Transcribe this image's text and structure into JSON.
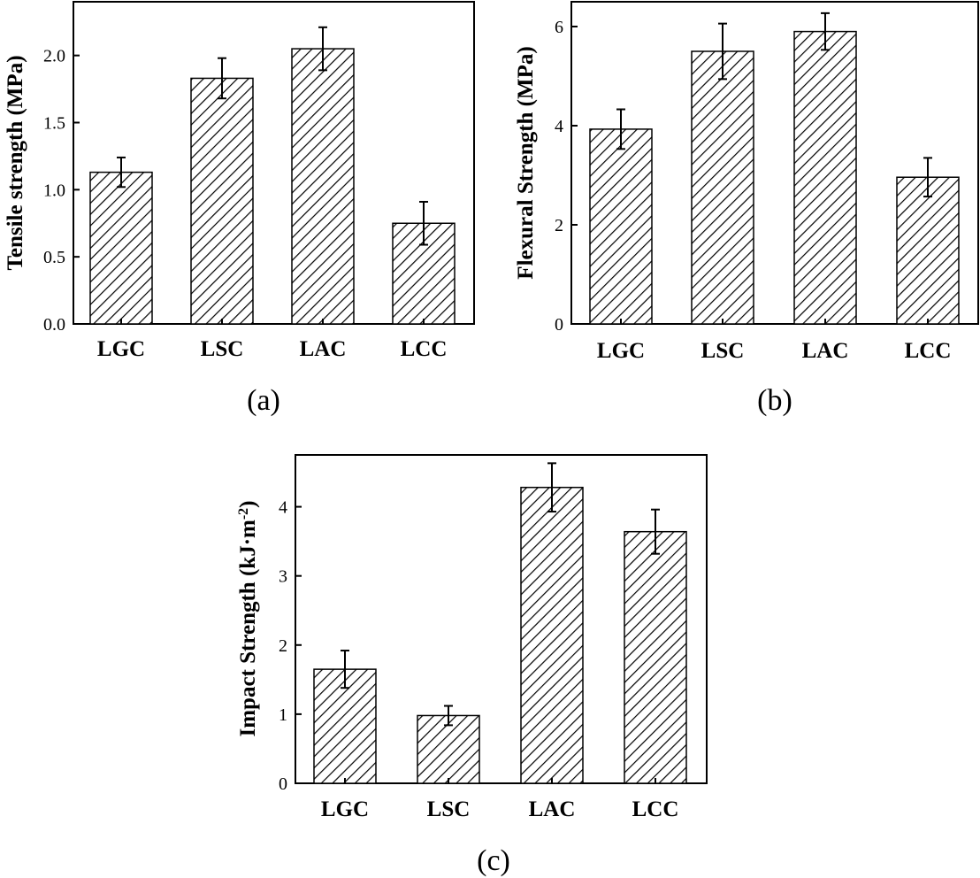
{
  "chart_data": [
    {
      "type": "bar",
      "panel": "(a)",
      "ylabel": "Tensile strength (MPa)",
      "xlabel": "",
      "categories": [
        "LGC",
        "LSC",
        "LAC",
        "LCC"
      ],
      "values": [
        1.13,
        1.83,
        2.05,
        0.75
      ],
      "errors": [
        0.11,
        0.15,
        0.16,
        0.16
      ],
      "ylim": [
        0,
        2.4
      ],
      "yticks": [
        "0.0",
        "0.5",
        "1.0",
        "1.5",
        "2.0"
      ],
      "pattern": "diagonal-hatch"
    },
    {
      "type": "bar",
      "panel": "(b)",
      "ylabel": "Flexural Strength (MPa)",
      "xlabel": "",
      "categories": [
        "LGC",
        "LSC",
        "LAC",
        "LCC"
      ],
      "values": [
        3.93,
        5.5,
        5.9,
        2.96
      ],
      "errors": [
        0.4,
        0.56,
        0.37,
        0.39
      ],
      "ylim": [
        0,
        6.5
      ],
      "yticks": [
        "0",
        "2",
        "4",
        "6"
      ],
      "pattern": "diagonal-hatch"
    },
    {
      "type": "bar",
      "panel": "(c)",
      "ylabel": "Impact Strength (kJ·m",
      "ylabel_sup": "-2",
      "ylabel_close": ")",
      "xlabel": "",
      "categories": [
        "LGC",
        "LSC",
        "LAC",
        "LCC"
      ],
      "values": [
        1.65,
        0.98,
        4.28,
        3.64
      ],
      "errors": [
        0.27,
        0.14,
        0.35,
        0.32
      ],
      "ylim": [
        0,
        4.75
      ],
      "yticks": [
        "0",
        "1",
        "2",
        "3",
        "4"
      ],
      "pattern": "diagonal-hatch"
    }
  ]
}
